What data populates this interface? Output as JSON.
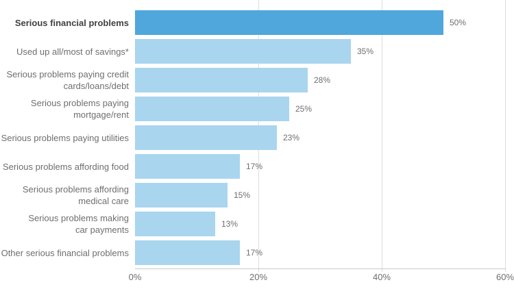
{
  "chart_data": {
    "type": "bar",
    "orientation": "horizontal",
    "title": "",
    "xlabel": "",
    "ylabel": "",
    "categories": [
      "Serious financial problems",
      "Used up all/most of savings*",
      "Serious problems paying credit cards/loans/debt",
      "Serious problems paying mortgage/rent",
      "Serious problems paying utilities",
      "Serious problems affording food",
      "Serious problems affording medical care",
      "Serious problems making car payments",
      "Other serious financial problems"
    ],
    "label_lines": [
      [
        "Serious financial problems"
      ],
      [
        "Used up all/most of savings*"
      ],
      [
        "Serious problems paying credit",
        "cards/loans/debt"
      ],
      [
        "Serious problems paying",
        "mortgage/rent"
      ],
      [
        "Serious problems paying utilities"
      ],
      [
        "Serious problems affording food"
      ],
      [
        "Serious problems affording",
        "medical care"
      ],
      [
        "Serious problems making",
        "car payments"
      ],
      [
        "Other serious financial problems"
      ]
    ],
    "values": [
      50,
      35,
      28,
      25,
      23,
      17,
      15,
      13,
      17
    ],
    "value_labels": [
      "50%",
      "35%",
      "28%",
      "25%",
      "23%",
      "17%",
      "15%",
      "13%",
      "17%"
    ],
    "highlight_index": 0,
    "x_ticks": [
      0,
      20,
      40,
      60
    ],
    "x_tick_labels": [
      "0%",
      "20%",
      "40%",
      "60%"
    ],
    "xlim": [
      0,
      60
    ],
    "grid": "vertical-only",
    "legend": "none",
    "colors": {
      "bar_default": "#a9d5ef",
      "bar_highlight": "#4fa7db",
      "gridline": "#dcdddd",
      "axis_line": "#c8c9ca",
      "label_text": "#6d6e71",
      "highlight_label_text": "#414042",
      "value_text": "#6d6e71",
      "tick_text": "#6d6e71"
    }
  }
}
